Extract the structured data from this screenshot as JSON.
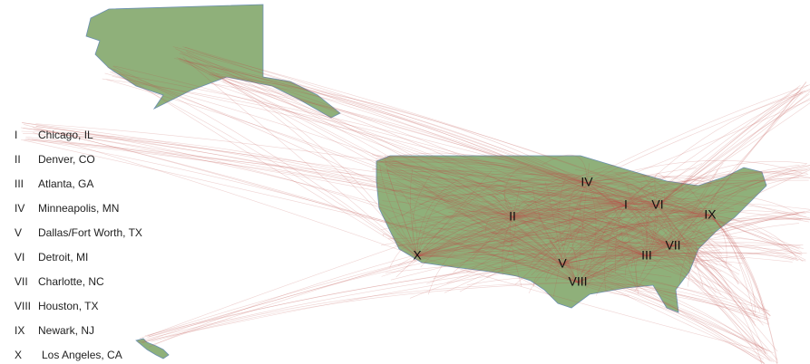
{
  "legend": {
    "items": [
      {
        "numeral": "I",
        "city": "Chicago, IL"
      },
      {
        "numeral": "II",
        "city": "Denver, CO"
      },
      {
        "numeral": "III",
        "city": "Atlanta, GA"
      },
      {
        "numeral": "IV",
        "city": "Minneapolis, MN"
      },
      {
        "numeral": "V",
        "city": "Dallas/Fort Worth, TX"
      },
      {
        "numeral": "VI",
        "city": "Detroit, MI"
      },
      {
        "numeral": "VII",
        "city": "Charlotte, NC"
      },
      {
        "numeral": "VIII",
        "city": "Houston, TX"
      },
      {
        "numeral": "IX",
        "city": "Newark, NJ"
      },
      {
        "numeral": "X",
        "city": "Los Angeles, CA"
      }
    ]
  }
}
